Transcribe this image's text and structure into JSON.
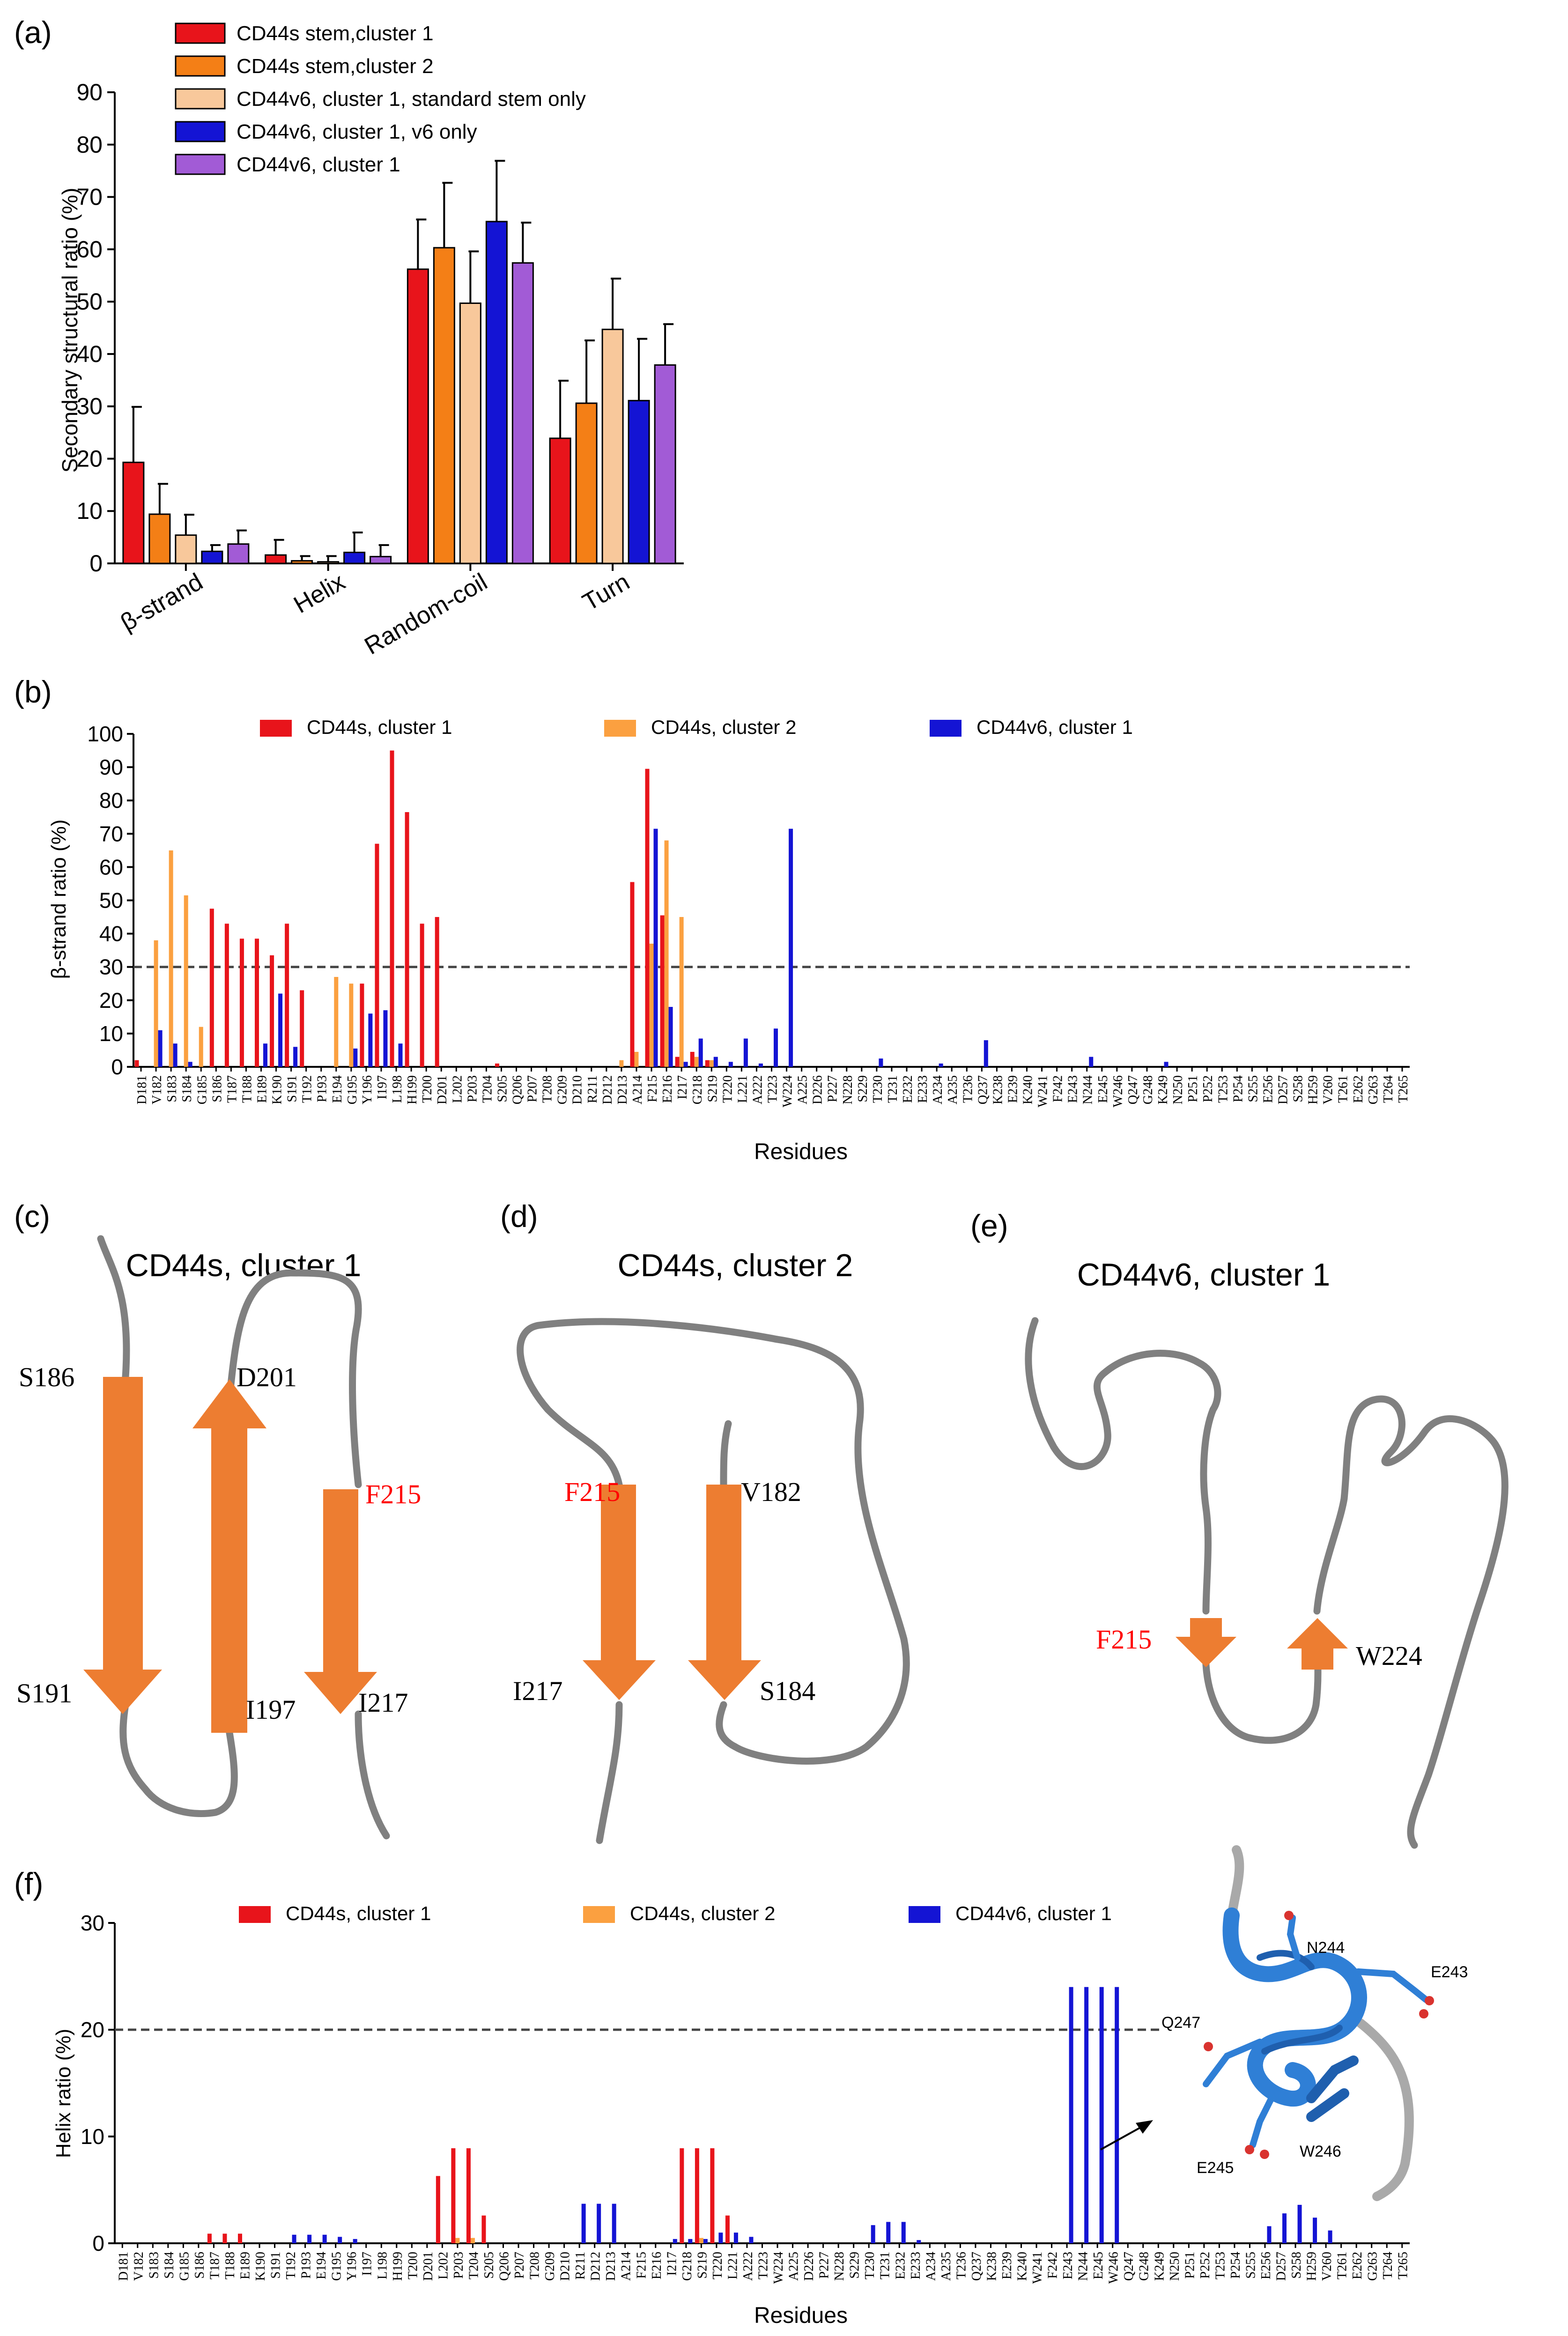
{
  "chart_data": [
    {
      "panel": "(a)",
      "type": "bar",
      "ylabel": "Secondary structural ratio (%)",
      "ylim": [
        0,
        90
      ],
      "yticks": [
        0,
        10,
        20,
        30,
        40,
        50,
        60,
        70,
        80,
        90
      ],
      "categories": [
        "β-strand",
        "Helix",
        "Random-coil",
        "Turn"
      ],
      "legend_position": "top-left",
      "series": [
        {
          "name": "CD44s stem,cluster 1",
          "color": "#e8141b",
          "values": [
            19.3,
            1.6,
            56.2,
            23.9
          ],
          "errors": [
            10.6,
            2.9,
            9.5,
            11.0
          ]
        },
        {
          "name": "CD44s stem,cluster 2",
          "color": "#f47f16",
          "values": [
            9.4,
            0.5,
            60.3,
            30.6
          ],
          "errors": [
            5.8,
            0.9,
            12.4,
            12.0
          ]
        },
        {
          "name": "CD44v6, cluster 1, standard stem only",
          "color": "#f8c89b",
          "values": [
            5.4,
            0.3,
            49.7,
            44.7
          ],
          "errors": [
            3.9,
            1.1,
            9.9,
            9.7
          ]
        },
        {
          "name": "CD44v6, cluster 1, v6 only",
          "color": "#1414d4",
          "values": [
            2.3,
            2.1,
            65.3,
            31.1
          ],
          "errors": [
            1.2,
            3.8,
            11.6,
            11.8
          ]
        },
        {
          "name": "CD44v6, cluster 1",
          "color": "#a25bd6",
          "values": [
            3.7,
            1.3,
            57.4,
            37.9
          ],
          "errors": [
            2.6,
            2.2,
            7.7,
            7.8
          ]
        }
      ]
    },
    {
      "panel": "(b)",
      "type": "bar",
      "ylabel": "β-strand  ratio (%)",
      "xlabel": "Residues",
      "ylim": [
        0,
        100
      ],
      "yticks": [
        0,
        10,
        20,
        30,
        40,
        50,
        60,
        70,
        80,
        90,
        100
      ],
      "threshold": 30,
      "legend_position": "top",
      "categories": [
        "D181",
        "V182",
        "S183",
        "S184",
        "G185",
        "S186",
        "T187",
        "T188",
        "E189",
        "K190",
        "S191",
        "T192",
        "P193",
        "E194",
        "G195",
        "Y196",
        "I197",
        "L198",
        "H199",
        "T200",
        "D201",
        "L202",
        "P203",
        "T204",
        "S205",
        "Q206",
        "P207",
        "T208",
        "G209",
        "D210",
        "R211",
        "D212",
        "D213",
        "A214",
        "F215",
        "E216",
        "I217",
        "G218",
        "S219",
        "T220",
        "L221",
        "A222",
        "T223",
        "W224",
        "A225",
        "D226",
        "P227",
        "N228",
        "S229",
        "T230",
        "T231",
        "E232",
        "E233",
        "A234",
        "A235",
        "T236",
        "Q237",
        "K238",
        "E239",
        "K240",
        "W241",
        "F242",
        "E243",
        "N244",
        "E245",
        "W246",
        "Q247",
        "G248",
        "K249",
        "N250",
        "P251",
        "P252",
        "T253",
        "P254",
        "S255",
        "E256",
        "D257",
        "S258",
        "H259",
        "V260",
        "T261",
        "E262",
        "G263",
        "T264",
        "T265"
      ],
      "series": [
        {
          "name": "CD44s, cluster 1",
          "color": "#e8141b",
          "values": {
            "D181": 2,
            "S186": 47.5,
            "T187": 43,
            "T188": 38.5,
            "E189": 38.5,
            "K190": 33.5,
            "S191": 43,
            "T192": 23,
            "Y196": 25,
            "I197": 67,
            "L198": 95,
            "H199": 76.5,
            "T200": 43,
            "D201": 45,
            "S205": 1,
            "A214": 55.5,
            "F215": 89.5,
            "E216": 45.5,
            "I217": 3,
            "G218": 4.5,
            "S219": 2
          }
        },
        {
          "name": "CD44s, cluster 2",
          "color": "#fba040",
          "values": {
            "V182": 38,
            "S183": 65,
            "S184": 51.5,
            "G185": 12,
            "E194": 27,
            "G195": 25,
            "D213": 2,
            "A214": 4.5,
            "F215": 37,
            "E216": 68,
            "I217": 45,
            "G218": 3,
            "S219": 2
          }
        },
        {
          "name": "CD44v6, cluster 1",
          "color": "#1414d4",
          "values": {
            "V182": 11,
            "S183": 7,
            "S184": 1.5,
            "E189": 7,
            "K190": 22,
            "S191": 6,
            "G195": 5.5,
            "Y196": 16,
            "I197": 17,
            "L198": 7,
            "F215": 71.5,
            "E216": 18,
            "I217": 1.5,
            "G218": 8.5,
            "S219": 3,
            "T220": 1.5,
            "L221": 8.5,
            "A222": 1,
            "T223": 11.5,
            "W224": 71.5,
            "T230": 2.5,
            "A234": 1,
            "Q237": 8,
            "N244": 3,
            "K249": 1.5
          }
        }
      ]
    },
    {
      "panel": "(f)",
      "type": "bar",
      "ylabel": "Helix  ratio (%)",
      "xlabel": "Residues",
      "ylim": [
        0,
        30
      ],
      "yticks": [
        0,
        10,
        20,
        30
      ],
      "threshold": 20,
      "legend_position": "top",
      "categories": [
        "D181",
        "V182",
        "S183",
        "S184",
        "G185",
        "S186",
        "T187",
        "T188",
        "E189",
        "K190",
        "S191",
        "T192",
        "P193",
        "E194",
        "G195",
        "Y196",
        "I197",
        "L198",
        "H199",
        "T200",
        "D201",
        "L202",
        "P203",
        "T204",
        "S205",
        "Q206",
        "P207",
        "T208",
        "G209",
        "D210",
        "R211",
        "D212",
        "D213",
        "A214",
        "F215",
        "E216",
        "I217",
        "G218",
        "S219",
        "T220",
        "L221",
        "A222",
        "T223",
        "W224",
        "A225",
        "D226",
        "P227",
        "N228",
        "S229",
        "T230",
        "T231",
        "E232",
        "E233",
        "A234",
        "A235",
        "T236",
        "Q237",
        "K238",
        "E239",
        "K240",
        "W241",
        "F242",
        "E243",
        "N244",
        "E245",
        "W246",
        "Q247",
        "G248",
        "K249",
        "N250",
        "P251",
        "P252",
        "T253",
        "P254",
        "S255",
        "E256",
        "D257",
        "S258",
        "H259",
        "V260",
        "T261",
        "E262",
        "G263",
        "T264",
        "T265"
      ],
      "series": [
        {
          "name": "CD44s, cluster 1",
          "color": "#e8141b",
          "values": {
            "T187": 0.9,
            "T188": 0.9,
            "E189": 0.9,
            "L202": 6.3,
            "P203": 8.9,
            "T204": 8.9,
            "S205": 2.6,
            "G218": 8.9,
            "S219": 8.9,
            "T220": 8.9,
            "L221": 2.6
          }
        },
        {
          "name": "CD44s, cluster 2",
          "color": "#fba040",
          "values": {
            "P203": 0.5,
            "T204": 0.5,
            "S219": 0.5
          }
        },
        {
          "name": "CD44v6, cluster 1",
          "color": "#1414d4",
          "values": {
            "T192": 0.8,
            "P193": 0.8,
            "E194": 0.8,
            "G195": 0.6,
            "Y196": 0.4,
            "R211": 3.7,
            "D212": 3.7,
            "D213": 3.7,
            "I217": 0.4,
            "G218": 0.4,
            "S219": 0.4,
            "T220": 1.0,
            "L221": 1.0,
            "A222": 0.6,
            "T230": 1.7,
            "T231": 2.0,
            "E232": 2.0,
            "E233": 0.3,
            "E243": 24,
            "N244": 24,
            "E245": 24,
            "W246": 24,
            "E256": 1.6,
            "D257": 2.8,
            "S258": 3.6,
            "H259": 2.4,
            "V260": 1.2
          }
        }
      ]
    }
  ],
  "panels": {
    "a": {
      "letter": "(a)"
    },
    "b": {
      "letter": "(b)"
    },
    "c": {
      "letter": "(c)",
      "title": "CD44s, cluster 1",
      "labels": {
        "s186": "S186",
        "d201": "D201",
        "f215": "F215",
        "s191": "S191",
        "i197": "I197",
        "i217": "I217"
      }
    },
    "d": {
      "letter": "(d)",
      "title": "CD44s, cluster 2",
      "labels": {
        "f215": "F215",
        "v182": "V182",
        "i217": "I217",
        "s184": "S184"
      }
    },
    "e": {
      "letter": "(e)",
      "title": "CD44v6, cluster 1",
      "labels": {
        "f215": "F215",
        "w224": "W224"
      }
    },
    "f": {
      "letter": "(f)",
      "structure_labels": {
        "n244": "N244",
        "e243": "E243",
        "q247": "Q247",
        "e245": "E245",
        "w246": "W246"
      }
    }
  },
  "colors": {
    "arrow": "#ed7d31",
    "coil": "#808080",
    "highlight": "#ff0000",
    "structure": "#2f7fd6"
  }
}
